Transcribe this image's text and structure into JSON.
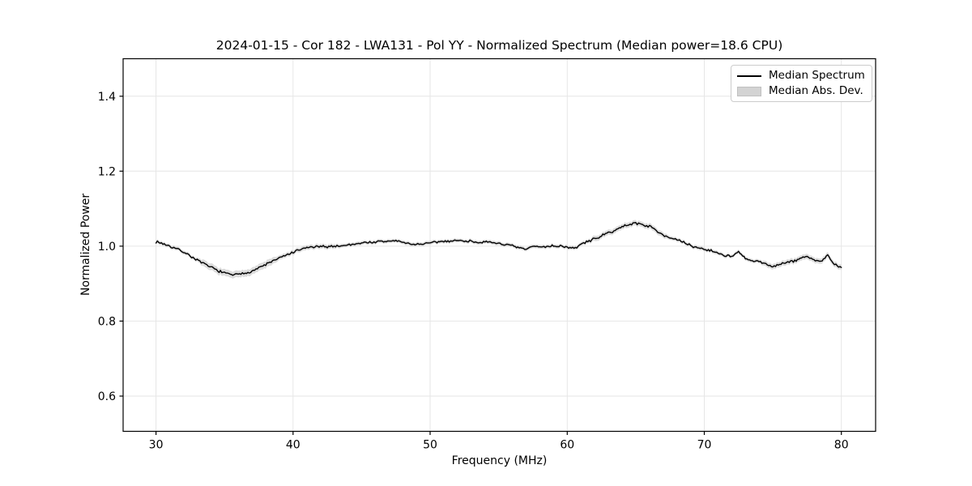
{
  "chart_data": {
    "type": "line",
    "title": "2024-01-15 - Cor 182 - LWA131 - Pol YY - Normalized Spectrum (Median power=18.6 CPU)",
    "xlabel": "Frequency (MHz)",
    "ylabel": "Normalized Power",
    "xlim": [
      27.6,
      82.5
    ],
    "ylim": [
      0.506,
      1.5
    ],
    "xticks": [
      30,
      40,
      50,
      60,
      70,
      80
    ],
    "yticks": [
      0.6,
      0.8,
      1.0,
      1.2,
      1.4
    ],
    "grid": true,
    "grid_color": "#e6e6e6",
    "line_color": "#000000",
    "band_color": "#c4c4c4",
    "background_color": "#ffffff",
    "noise_amplitude": 0.004,
    "legend": {
      "position": "upper right",
      "entries": [
        {
          "label": "Median Spectrum",
          "swatch": "line",
          "color": "#000000"
        },
        {
          "label": "Median Abs. Dev.",
          "swatch": "patch",
          "color": "#d3d3d3"
        }
      ]
    },
    "x": [
      30,
      30.5,
      31,
      31.5,
      32,
      32.5,
      33,
      33.5,
      34,
      34.5,
      35,
      35.5,
      36,
      36.5,
      37,
      37.5,
      38,
      38.5,
      39,
      39.5,
      40,
      40.5,
      41,
      41.5,
      42,
      42.5,
      43,
      43.5,
      44,
      44.5,
      45,
      45.5,
      46,
      46.5,
      47,
      47.5,
      48,
      48.5,
      49,
      49.5,
      50,
      50.5,
      51,
      51.5,
      52,
      52.5,
      53,
      53.5,
      54,
      54.5,
      55,
      55.5,
      56,
      56.5,
      57,
      57.5,
      58,
      58.5,
      59,
      59.5,
      60,
      60.5,
      61,
      61.5,
      62,
      62.5,
      63,
      63.5,
      64,
      64.5,
      65,
      65.5,
      66,
      66.5,
      67,
      67.5,
      68,
      68.5,
      69,
      69.5,
      70,
      70.5,
      71,
      71.5,
      72,
      72.5,
      73,
      73.5,
      74,
      74.5,
      75,
      75.5,
      76,
      76.5,
      77,
      77.5,
      78,
      78.5,
      79,
      79.5,
      80
    ],
    "median_spectrum": [
      1.012,
      1.007,
      1.0,
      0.993,
      0.985,
      0.974,
      0.963,
      0.952,
      0.944,
      0.935,
      0.928,
      0.924,
      0.924,
      0.928,
      0.934,
      0.942,
      0.951,
      0.96,
      0.968,
      0.976,
      0.983,
      0.99,
      0.996,
      0.998,
      0.998,
      0.999,
      1.0,
      1.001,
      1.003,
      1.006,
      1.009,
      1.01,
      1.011,
      1.012,
      1.013,
      1.015,
      1.01,
      1.006,
      1.005,
      1.006,
      1.008,
      1.011,
      1.013,
      1.014,
      1.015,
      1.014,
      1.013,
      1.011,
      1.01,
      1.009,
      1.008,
      1.004,
      1.0,
      0.995,
      0.991,
      1.0,
      0.998,
      0.999,
      1.001,
      1.0,
      0.998,
      0.993,
      1.005,
      1.012,
      1.02,
      1.027,
      1.035,
      1.043,
      1.051,
      1.058,
      1.062,
      1.057,
      1.053,
      1.042,
      1.031,
      1.022,
      1.016,
      1.01,
      1.001,
      0.996,
      0.992,
      0.988,
      0.981,
      0.976,
      0.972,
      0.984,
      0.966,
      0.961,
      0.958,
      0.952,
      0.946,
      0.952,
      0.956,
      0.959,
      0.968,
      0.972,
      0.964,
      0.959,
      0.975,
      0.95,
      0.943
    ],
    "median_abs_dev": [
      0.005,
      0.005,
      0.005,
      0.005,
      0.005,
      0.005,
      0.005,
      0.009,
      0.009,
      0.009,
      0.009,
      0.009,
      0.009,
      0.009,
      0.009,
      0.009,
      0.009,
      0.009,
      0.006,
      0.006,
      0.006,
      0.006,
      0.006,
      0.006,
      0.006,
      0.006,
      0.006,
      0.005,
      0.005,
      0.005,
      0.005,
      0.005,
      0.005,
      0.005,
      0.005,
      0.005,
      0.005,
      0.005,
      0.005,
      0.005,
      0.005,
      0.005,
      0.005,
      0.005,
      0.005,
      0.005,
      0.005,
      0.005,
      0.005,
      0.005,
      0.005,
      0.005,
      0.005,
      0.005,
      0.005,
      0.005,
      0.005,
      0.005,
      0.005,
      0.005,
      0.005,
      0.005,
      0.005,
      0.005,
      0.007,
      0.007,
      0.007,
      0.007,
      0.007,
      0.007,
      0.007,
      0.007,
      0.007,
      0.007,
      0.007,
      0.005,
      0.005,
      0.005,
      0.005,
      0.005,
      0.005,
      0.005,
      0.005,
      0.005,
      0.005,
      0.005,
      0.005,
      0.005,
      0.005,
      0.007,
      0.007,
      0.007,
      0.007,
      0.007,
      0.007,
      0.007,
      0.007,
      0.007,
      0.007,
      0.007,
      0.007
    ]
  }
}
